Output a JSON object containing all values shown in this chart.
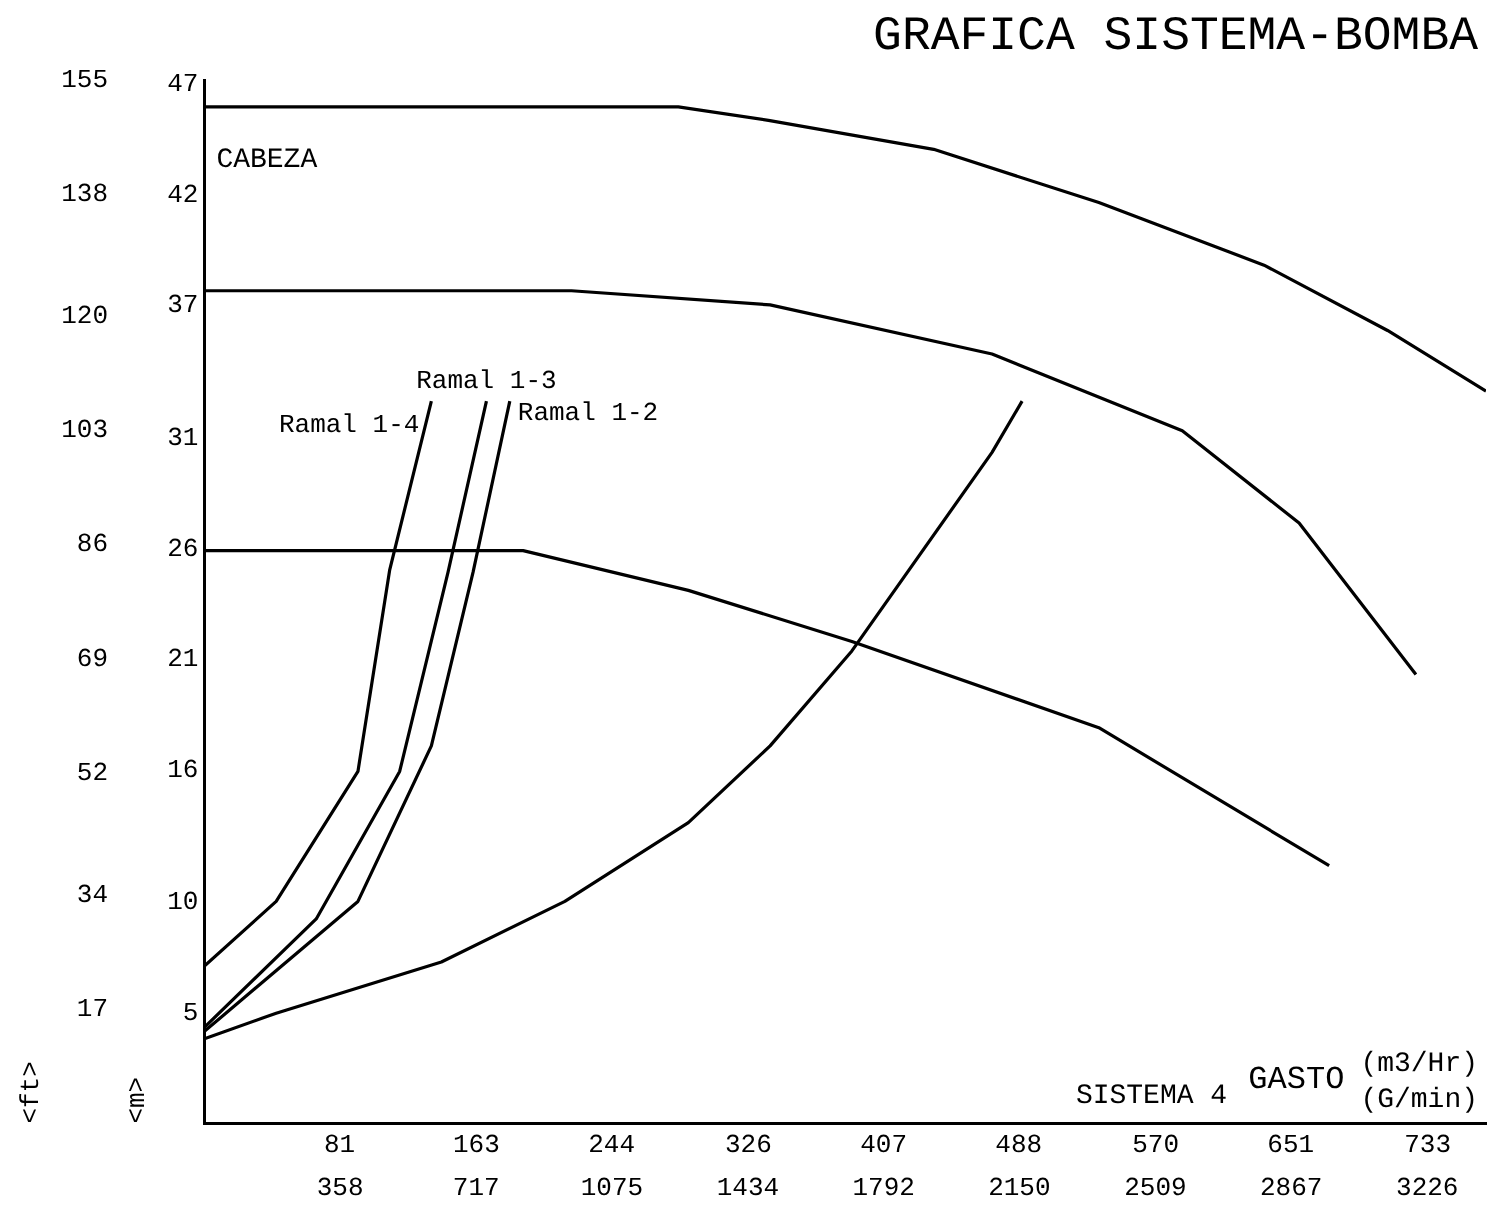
{
  "chart_data": {
    "type": "line",
    "title": "GRAFICA SISTEMA-BOMBA",
    "xlabel": "(m3/Hr)",
    "x2label": "(G/min)",
    "ylabel": "<ft>",
    "y2label": "<m>",
    "annotations": [
      "CABEZA",
      "GASTO",
      "SISTEMA 4"
    ],
    "xlim": [
      0,
      768
    ],
    "xticks": [
      81,
      163,
      244,
      326,
      407,
      488,
      570,
      651,
      733
    ],
    "x2lim": [
      0,
      3381
    ],
    "x2ticks": [
      358,
      717,
      1075,
      1434,
      1792,
      2150,
      2509,
      2867,
      3226
    ],
    "ylim": [
      0,
      155
    ],
    "yticks": [
      17,
      34,
      52,
      69,
      86,
      103,
      120,
      138,
      155
    ],
    "y2lim": [
      0,
      47.2
    ],
    "y2ticks": [
      5,
      10,
      16,
      21,
      26,
      31,
      37,
      42,
      47
    ],
    "grid": false,
    "legend": false,
    "marker": "none",
    "line_style": "solid",
    "series": [
      {
        "color": "#000000",
        "x": [
          0,
          284,
          338,
          437,
          536,
          635,
          709,
          768
        ],
        "values": [
          151,
          151,
          149,
          144.7,
          136.8,
          127.5,
          117.8,
          108.8
        ]
      },
      {
        "color": "#000000",
        "x": [
          0,
          220,
          339,
          472,
          586,
          656,
          726
        ],
        "values": [
          123.7,
          123.7,
          121.6,
          114.3,
          102.9,
          89.2,
          66.7
        ]
      },
      {
        "color": "#000000",
        "x": [
          0,
          191,
          290,
          388,
          536,
          674
        ],
        "values": [
          85.1,
          85.1,
          79.2,
          71.6,
          58.8,
          38.3
        ]
      },
      {
        "color": "#000000",
        "x": [
          0,
          43,
          142,
          216,
          290,
          339,
          388,
          472,
          490
        ],
        "values": [
          12.6,
          16.4,
          24,
          33,
          44.7,
          56.1,
          70.2,
          99.7,
          107.3
        ]
      },
      {
        "name": "Ramal 1-4",
        "color": "#000000",
        "x": [
          0,
          43,
          92,
          111,
          136
        ],
        "values": [
          23.4,
          33,
          52.3,
          82.2,
          107.3
        ]
      },
      {
        "name": "Ramal 1-3",
        "color": "#000000",
        "x": [
          0,
          67,
          117,
          146,
          169
        ],
        "values": [
          14.3,
          30.4,
          52.3,
          81.9,
          107.3
        ]
      },
      {
        "name": "Ramal 1-2",
        "color": "#000000",
        "x": [
          0,
          92,
          136,
          161,
          183
        ],
        "values": [
          13.7,
          33,
          56.1,
          81.9,
          107.3
        ]
      }
    ]
  }
}
